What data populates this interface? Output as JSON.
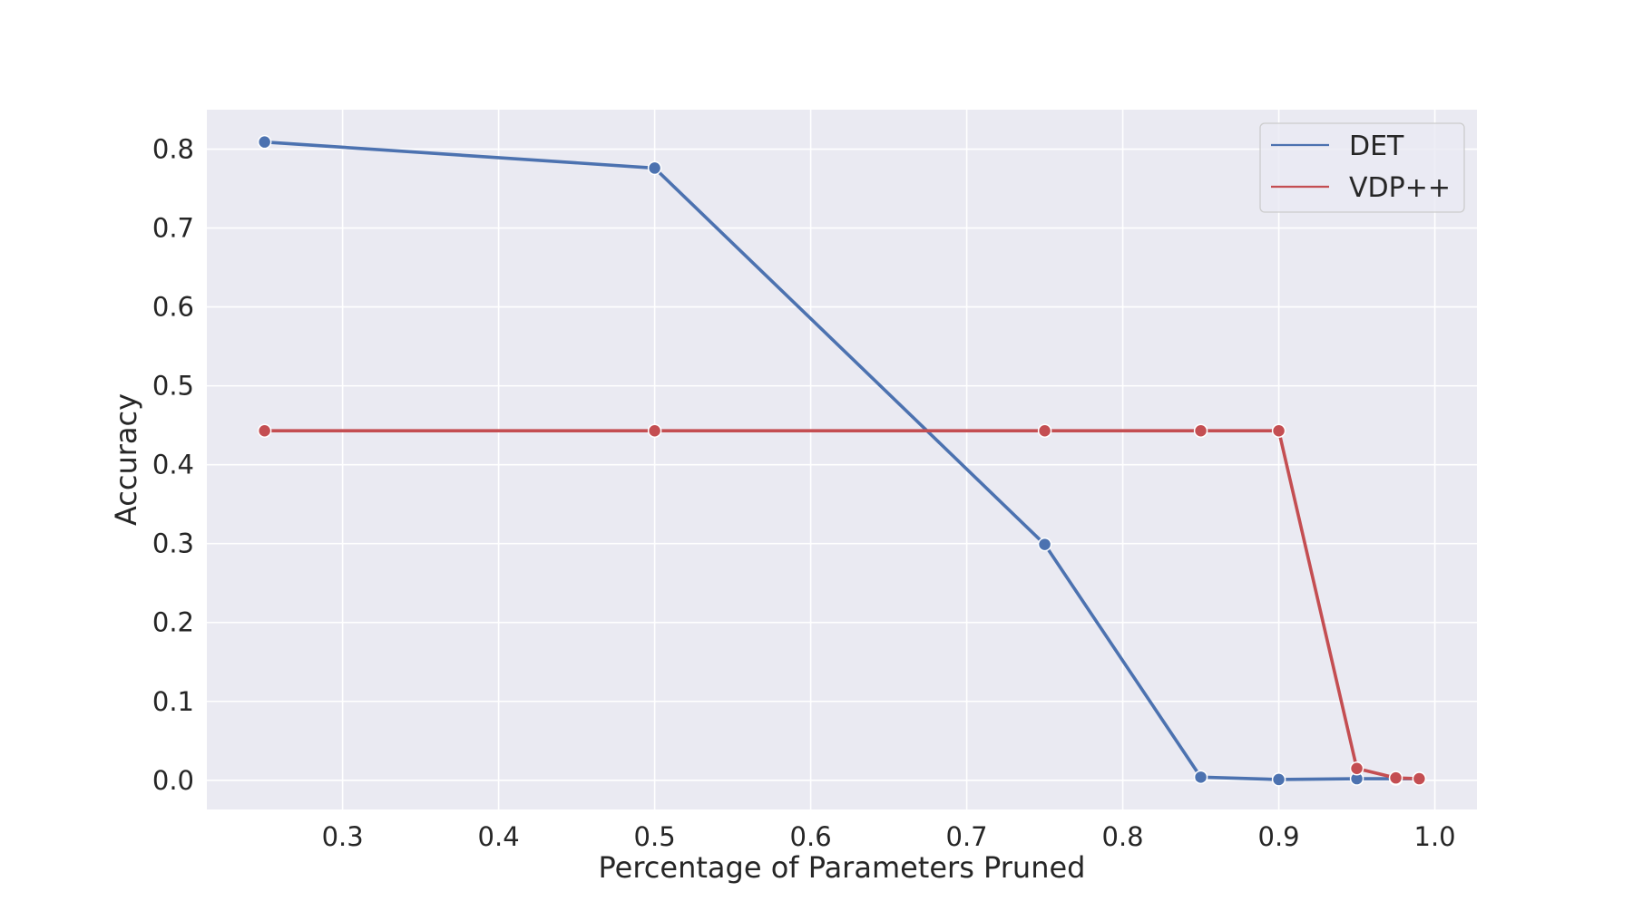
{
  "chart_data": {
    "type": "line",
    "title": "",
    "xlabel": "Percentage of Parameters Pruned",
    "ylabel": "Accuracy",
    "xlim": [
      0.213,
      1.027
    ],
    "ylim": [
      -0.037,
      0.85
    ],
    "xticks": [
      0.3,
      0.4,
      0.5,
      0.6,
      0.7,
      0.8,
      0.9,
      1.0
    ],
    "xtick_labels": [
      "0.3",
      "0.4",
      "0.5",
      "0.6",
      "0.7",
      "0.8",
      "0.9",
      "1.0"
    ],
    "yticks": [
      0.0,
      0.1,
      0.2,
      0.3,
      0.4,
      0.5,
      0.6,
      0.7,
      0.8
    ],
    "ytick_labels": [
      "0.0",
      "0.1",
      "0.2",
      "0.3",
      "0.4",
      "0.5",
      "0.6",
      "0.7",
      "0.8"
    ],
    "grid": true,
    "legend_position": "top-right",
    "background_color": "#eaeaf2",
    "grid_color": "#ffffff",
    "series": [
      {
        "name": "DET",
        "color": "#4c72b0",
        "x": [
          0.25,
          0.5,
          0.75,
          0.85,
          0.9,
          0.95,
          0.975,
          0.99
        ],
        "y": [
          0.809,
          0.776,
          0.299,
          0.004,
          0.001,
          0.002,
          0.002,
          0.002
        ]
      },
      {
        "name": "VDP++",
        "color": "#c44e52",
        "x": [
          0.25,
          0.5,
          0.75,
          0.85,
          0.9,
          0.95,
          0.975,
          0.99
        ],
        "y": [
          0.443,
          0.443,
          0.443,
          0.443,
          0.443,
          0.015,
          0.003,
          0.002
        ]
      }
    ]
  }
}
